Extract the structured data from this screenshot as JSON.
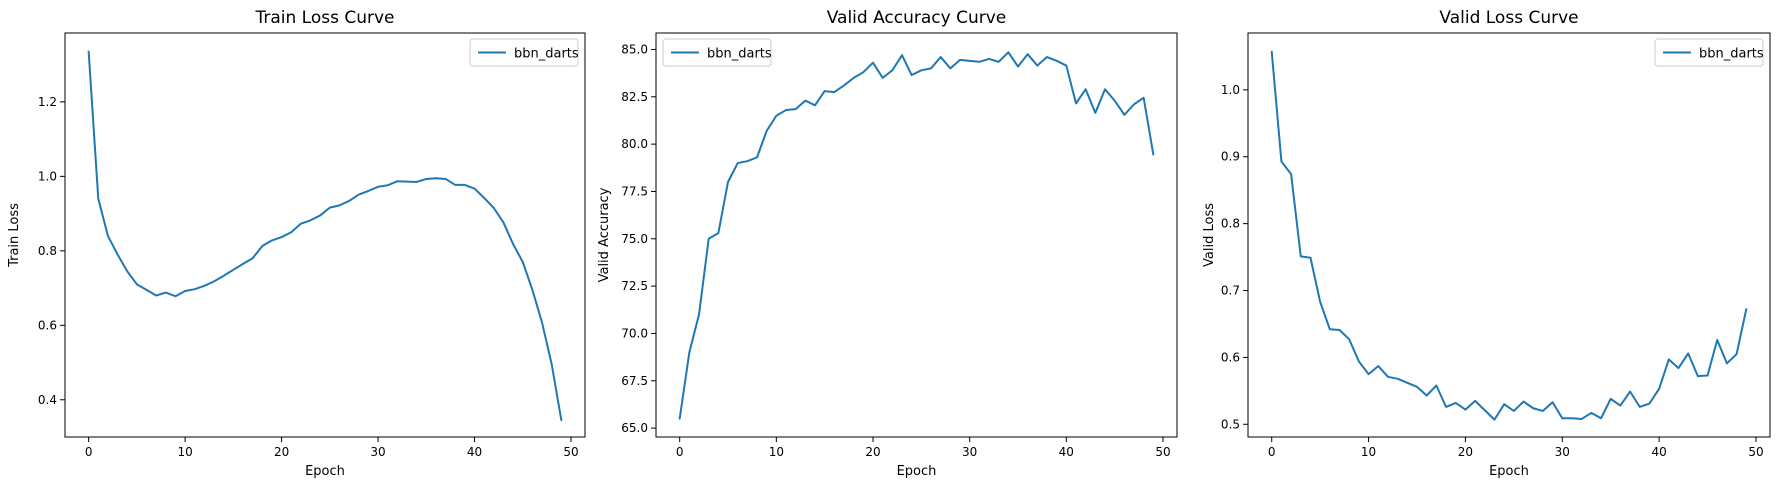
{
  "chart_data": [
    {
      "type": "line",
      "title": "Train Loss Curve",
      "xlabel": "Epoch",
      "ylabel": "Train Loss",
      "xlim": [
        -2.45,
        51.45
      ],
      "ylim": [
        0.3,
        1.385
      ],
      "xticks": [
        0,
        10,
        20,
        30,
        40,
        50
      ],
      "xtick_labels": [
        "0",
        "10",
        "20",
        "30",
        "40",
        "50"
      ],
      "yticks": [
        0.4,
        0.6,
        0.8,
        1.0,
        1.2
      ],
      "ytick_labels": [
        "0.4",
        "0.6",
        "0.8",
        "1.0",
        "1.2"
      ],
      "legend_position": "upper right",
      "grid": false,
      "series": [
        {
          "name": "bbn_darts",
          "color": "#1f77b4",
          "x": [
            0,
            1,
            2,
            3,
            4,
            5,
            6,
            7,
            8,
            9,
            10,
            11,
            12,
            13,
            14,
            15,
            16,
            17,
            18,
            19,
            20,
            21,
            22,
            23,
            24,
            25,
            26,
            27,
            28,
            29,
            30,
            31,
            32,
            33,
            34,
            35,
            36,
            37,
            38,
            39,
            40,
            41,
            42,
            43,
            44,
            45,
            46,
            47,
            48,
            49
          ],
          "y": [
            1.335,
            0.94,
            0.84,
            0.79,
            0.745,
            0.71,
            0.695,
            0.68,
            0.688,
            0.678,
            0.692,
            0.697,
            0.706,
            0.718,
            0.733,
            0.749,
            0.765,
            0.78,
            0.813,
            0.828,
            0.837,
            0.85,
            0.873,
            0.882,
            0.895,
            0.916,
            0.922,
            0.934,
            0.951,
            0.961,
            0.972,
            0.976,
            0.987,
            0.986,
            0.985,
            0.993,
            0.995,
            0.993,
            0.977,
            0.977,
            0.967,
            0.942,
            0.915,
            0.876,
            0.818,
            0.77,
            0.695,
            0.607,
            0.495,
            0.345
          ]
        }
      ]
    },
    {
      "type": "line",
      "title": "Valid Accuracy Curve",
      "xlabel": "Epoch",
      "ylabel": "Valid Accuracy",
      "xlim": [
        -2.45,
        51.45
      ],
      "ylim": [
        64.53,
        85.87
      ],
      "xticks": [
        0,
        10,
        20,
        30,
        40,
        50
      ],
      "xtick_labels": [
        "0",
        "10",
        "20",
        "30",
        "40",
        "50"
      ],
      "yticks": [
        65.0,
        67.5,
        70.0,
        72.5,
        75.0,
        77.5,
        80.0,
        82.5,
        85.0
      ],
      "ytick_labels": [
        "65.0",
        "67.5",
        "70.0",
        "72.5",
        "75.0",
        "77.5",
        "80.0",
        "82.5",
        "85.0"
      ],
      "legend_position": "upper left",
      "grid": false,
      "series": [
        {
          "name": "bbn_darts",
          "color": "#1f77b4",
          "x": [
            0,
            1,
            2,
            3,
            4,
            5,
            6,
            7,
            8,
            9,
            10,
            11,
            12,
            13,
            14,
            15,
            16,
            17,
            18,
            19,
            20,
            21,
            22,
            23,
            24,
            25,
            26,
            27,
            28,
            29,
            30,
            31,
            32,
            33,
            34,
            35,
            36,
            37,
            38,
            39,
            40,
            41,
            42,
            43,
            44,
            45,
            46,
            47,
            48,
            49
          ],
          "y": [
            65.5,
            69.0,
            71.0,
            75.0,
            75.3,
            78.0,
            79.0,
            79.1,
            79.3,
            80.7,
            81.5,
            81.8,
            81.85,
            82.3,
            82.05,
            82.8,
            82.75,
            83.1,
            83.5,
            83.8,
            84.3,
            83.5,
            83.9,
            84.7,
            83.65,
            83.9,
            84.0,
            84.6,
            84.0,
            84.45,
            84.4,
            84.35,
            84.5,
            84.35,
            84.85,
            84.1,
            84.75,
            84.15,
            84.6,
            84.4,
            84.15,
            82.15,
            82.9,
            81.65,
            82.9,
            82.3,
            81.55,
            82.1,
            82.45,
            79.45
          ]
        }
      ]
    },
    {
      "type": "line",
      "title": "Valid Loss Curve",
      "xlabel": "Epoch",
      "ylabel": "Valid Loss",
      "xlim": [
        -2.45,
        51.45
      ],
      "ylim": [
        0.481,
        1.085
      ],
      "xticks": [
        0,
        10,
        20,
        30,
        40,
        50
      ],
      "xtick_labels": [
        "0",
        "10",
        "20",
        "30",
        "40",
        "50"
      ],
      "yticks": [
        0.5,
        0.6,
        0.7,
        0.8,
        0.9,
        1.0
      ],
      "ytick_labels": [
        "0.5",
        "0.6",
        "0.7",
        "0.8",
        "0.9",
        "1.0"
      ],
      "legend_position": "upper right",
      "grid": false,
      "series": [
        {
          "name": "bbn_darts",
          "color": "#1f77b4",
          "x": [
            0,
            1,
            2,
            3,
            4,
            5,
            6,
            7,
            8,
            9,
            10,
            11,
            12,
            13,
            14,
            15,
            16,
            17,
            18,
            19,
            20,
            21,
            22,
            23,
            24,
            25,
            26,
            27,
            28,
            29,
            30,
            31,
            32,
            33,
            34,
            35,
            36,
            37,
            38,
            39,
            40,
            41,
            42,
            43,
            44,
            45,
            46,
            47,
            48,
            49
          ],
          "y": [
            1.057,
            0.893,
            0.874,
            0.751,
            0.749,
            0.683,
            0.642,
            0.641,
            0.627,
            0.594,
            0.575,
            0.587,
            0.571,
            0.568,
            0.562,
            0.556,
            0.543,
            0.558,
            0.526,
            0.532,
            0.522,
            0.535,
            0.521,
            0.507,
            0.53,
            0.52,
            0.534,
            0.524,
            0.52,
            0.533,
            0.509,
            0.509,
            0.508,
            0.517,
            0.509,
            0.538,
            0.528,
            0.549,
            0.526,
            0.531,
            0.553,
            0.597,
            0.584,
            0.606,
            0.572,
            0.573,
            0.626,
            0.591,
            0.605,
            0.672
          ]
        }
      ]
    }
  ]
}
